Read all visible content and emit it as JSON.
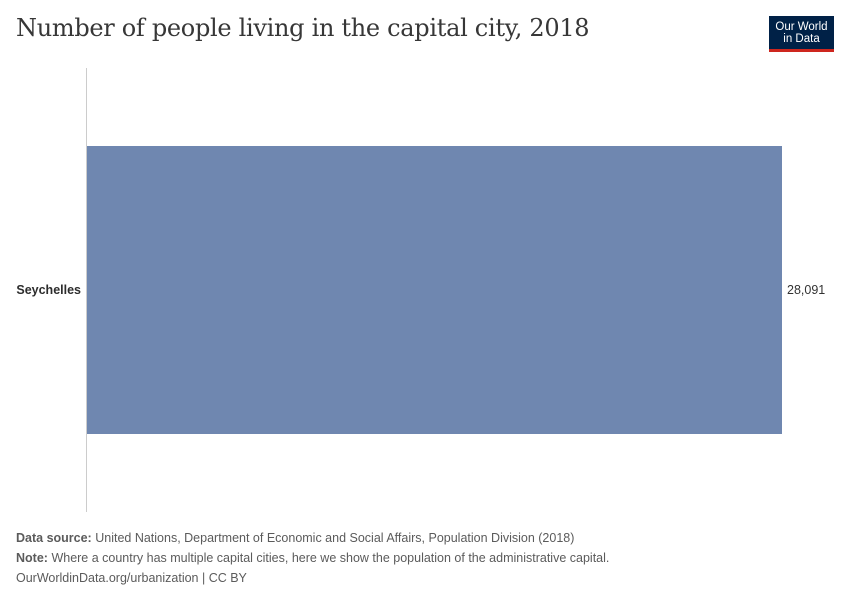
{
  "header": {
    "title": "Number of people living in the capital city, 2018",
    "logo_line1": "Our World",
    "logo_line2": "in Data"
  },
  "colors": {
    "bar": "#6f87b0",
    "axis": "#cccccc",
    "logo_bg": "#002147",
    "logo_accent": "#ce261e"
  },
  "chart_data": {
    "type": "bar",
    "orientation": "horizontal",
    "categories": [
      "Seychelles"
    ],
    "values": [
      28091
    ],
    "value_labels": [
      "28,091"
    ],
    "title": "Number of people living in the capital city, 2018",
    "xlabel": "",
    "ylabel": "",
    "xlim": [
      0,
      28091
    ],
    "grid": false
  },
  "footer": {
    "source_label": "Data source:",
    "source_text": "United Nations, Department of Economic and Social Affairs, Population Division (2018)",
    "note_label": "Note:",
    "note_text": "Where a country has multiple capital cities, here we show the population of the administrative capital.",
    "url_text": "OurWorldinData.org/urbanization | CC BY"
  }
}
